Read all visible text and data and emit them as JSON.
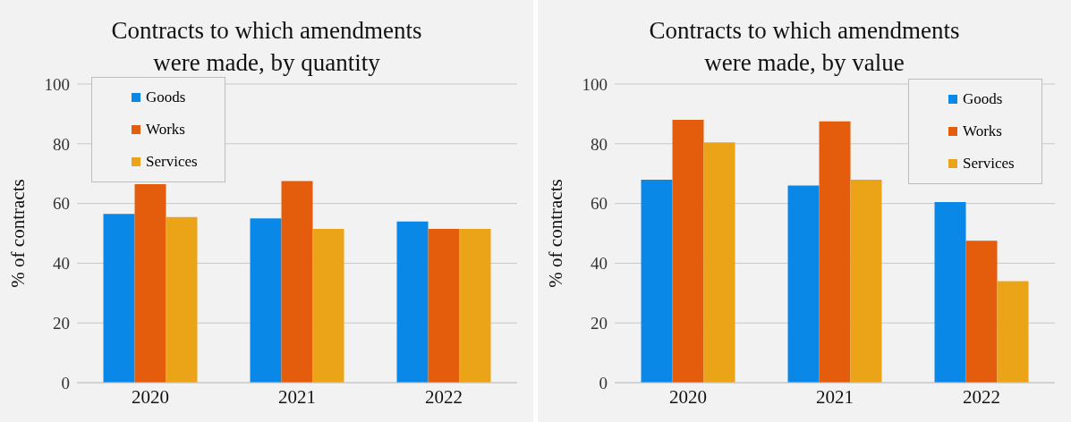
{
  "chart_data": [
    {
      "type": "bar",
      "title": "Contracts to which amendments were made, by quantity",
      "ylabel": "% of contracts",
      "categories": [
        "2020",
        "2021",
        "2022"
      ],
      "series": [
        {
          "name": "Goods",
          "color": "#0a88e8",
          "values": [
            56.5,
            55,
            54
          ]
        },
        {
          "name": "Works",
          "color": "#e35d0c",
          "values": [
            66.5,
            67.5,
            51.5
          ]
        },
        {
          "name": "Services",
          "color": "#eba417",
          "values": [
            55.5,
            51.5,
            51.5
          ]
        }
      ],
      "ylim": [
        0,
        100
      ],
      "yticks": [
        0,
        20,
        40,
        60,
        80,
        100
      ],
      "grid": "y",
      "legend": "top left"
    },
    {
      "type": "bar",
      "title": "Contracts to which amendments were made, by value",
      "ylabel": "% of contracts",
      "categories": [
        "2020",
        "2021",
        "2022"
      ],
      "series": [
        {
          "name": "Goods",
          "color": "#0a88e8",
          "values": [
            68,
            66,
            60.5
          ]
        },
        {
          "name": "Works",
          "color": "#e35d0c",
          "values": [
            88,
            87.5,
            47.5
          ]
        },
        {
          "name": "Services",
          "color": "#eba417",
          "values": [
            80.5,
            68,
            34
          ]
        }
      ],
      "ylim": [
        0,
        100
      ],
      "yticks": [
        0,
        20,
        40,
        60,
        80,
        100
      ],
      "grid": "y",
      "legend": "top right"
    }
  ]
}
